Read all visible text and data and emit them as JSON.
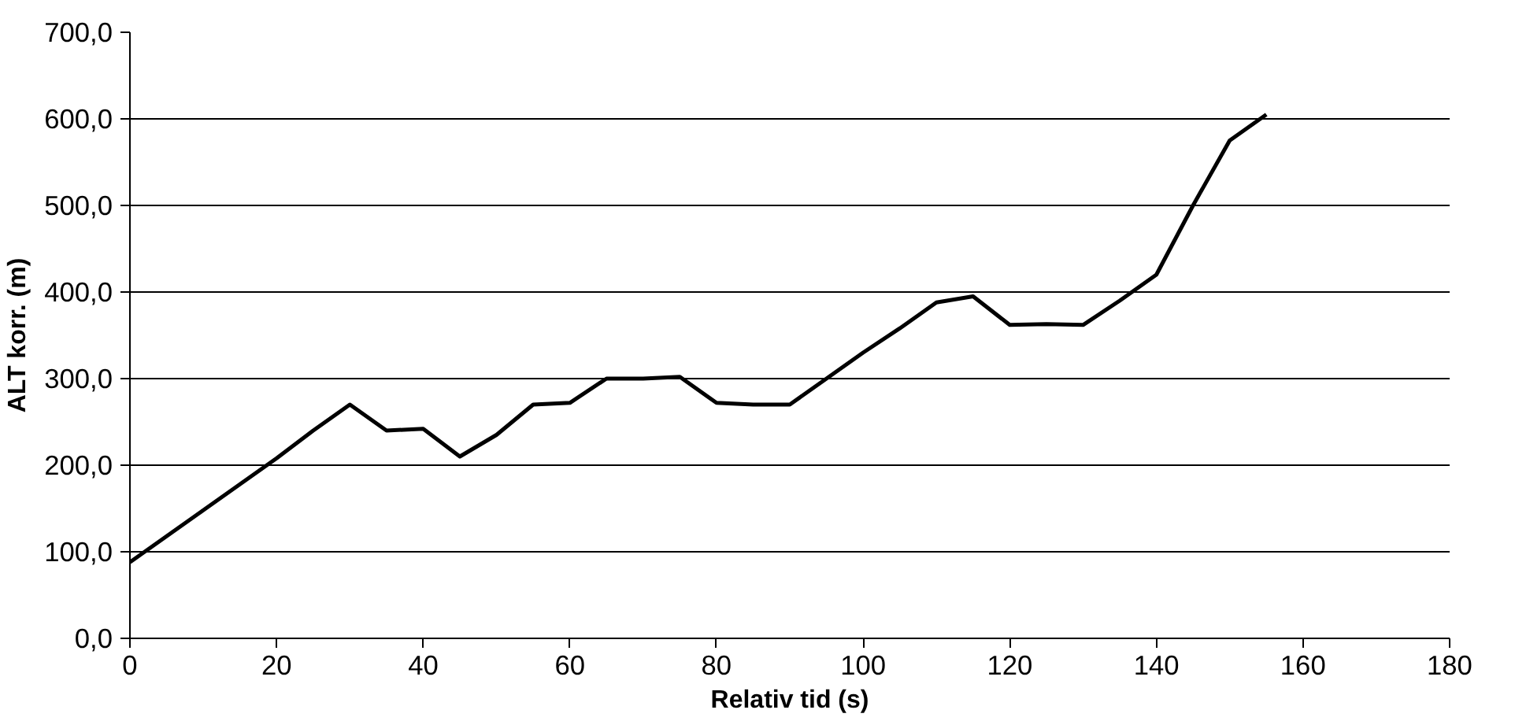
{
  "chart_data": {
    "type": "line",
    "xlabel": "Relativ tid (s)",
    "ylabel": "ALT korr. (m)",
    "x": [
      0,
      5,
      10,
      15,
      20,
      25,
      30,
      35,
      40,
      45,
      50,
      55,
      60,
      65,
      70,
      75,
      80,
      85,
      90,
      95,
      100,
      105,
      110,
      115,
      120,
      125,
      130,
      135,
      140,
      145,
      150,
      155
    ],
    "series": [
      {
        "color": "#000000",
        "values": [
          88,
          118,
          148,
          178,
          208,
          240,
          270,
          240,
          242,
          210,
          235,
          270,
          272,
          300,
          300,
          302,
          272,
          270,
          270,
          300,
          330,
          358,
          388,
          395,
          362,
          363,
          362,
          390,
          420,
          500,
          575,
          605
        ]
      }
    ],
    "xlim": [
      0,
      180
    ],
    "xticks": [
      0,
      20,
      40,
      60,
      80,
      100,
      120,
      140,
      160,
      180
    ],
    "ylim": [
      0,
      700
    ],
    "yticks": [
      {
        "value": 0,
        "label": "0,0"
      },
      {
        "value": 100,
        "label": "100,0"
      },
      {
        "value": 200,
        "label": "200,0"
      },
      {
        "value": 300,
        "label": "300,0"
      },
      {
        "value": 400,
        "label": "400,0"
      },
      {
        "value": 500,
        "label": "500,0"
      },
      {
        "value": 600,
        "label": "600,0"
      },
      {
        "value": 700,
        "label": "700,0"
      }
    ],
    "grid": "y",
    "marker": "none",
    "line_style": "solid"
  }
}
